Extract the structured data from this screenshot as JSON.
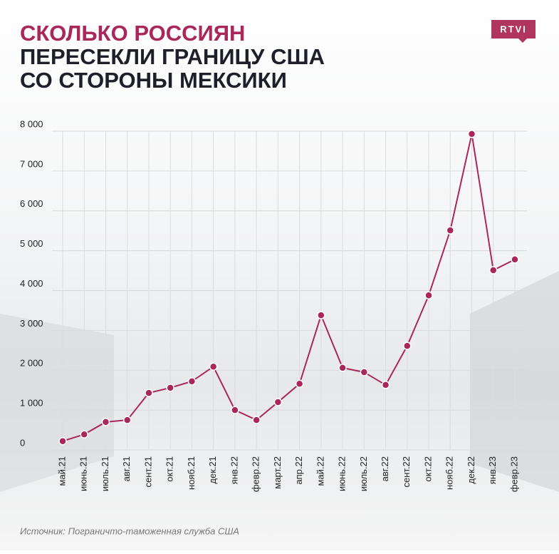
{
  "logo": "RTVI",
  "chart_data": {
    "type": "line",
    "title": [
      "СКОЛЬКО РОССИЯН",
      "ПЕРЕСЕКЛИ ГРАНИЦУ США",
      "СО СТОРОНЫ МЕКСИКИ"
    ],
    "source": "Источник: Пограничто-таможенная служба США",
    "categories": [
      "май.21",
      "июнь.21",
      "июль.21",
      "авг.21",
      "сент.21",
      "окт.21",
      "нояб.21",
      "дек.21",
      "янв.22",
      "февр.22",
      "март.22",
      "апр.22",
      "май.22",
      "июнь.22",
      "июль.22",
      "авг.22",
      "сент.22",
      "окт.22",
      "нояб.22",
      "дек.22",
      "янв.23",
      "февр.23"
    ],
    "series": [
      {
        "color": "#a9275a",
        "values": [
          220,
          390,
          700,
          750,
          1430,
          1560,
          1720,
          2090,
          1000,
          750,
          1200,
          1660,
          3380,
          2060,
          1950,
          1630,
          2610,
          3880,
          5510,
          7930,
          4510,
          4780
        ]
      }
    ],
    "ylim": [
      0,
      8000
    ],
    "yticks": [
      0,
      {
        "value": 1000,
        "label": "1 000"
      },
      {
        "value": 2000,
        "label": "2 000"
      },
      {
        "value": 3000,
        "label": "3 000"
      },
      {
        "value": 4000,
        "label": "4 000"
      },
      {
        "value": 5000,
        "label": "5 000"
      },
      {
        "value": 6000,
        "label": "6 000"
      },
      {
        "value": 7000,
        "label": "7 000"
      },
      {
        "value": 8000,
        "label": "8 000"
      }
    ],
    "grid": true
  }
}
